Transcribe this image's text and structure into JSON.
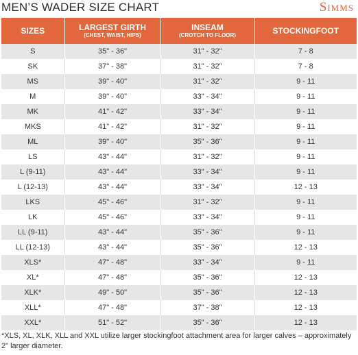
{
  "header": {
    "title": "MEN’S WADER SIZE CHART",
    "logo": "Simms"
  },
  "table": {
    "columns": [
      {
        "label": "SIZES",
        "sub": ""
      },
      {
        "label": "LARGEST GIRTH",
        "sub": "(CHEST, WAIST, HIPS)"
      },
      {
        "label": "INSEAM",
        "sub": "(CROTCH TO FLOOR)"
      },
      {
        "label": "STOCKINGFOOT",
        "sub": ""
      }
    ],
    "rows": [
      {
        "size": "S",
        "girth": "35\" - 36\"",
        "inseam": "31\" - 32\"",
        "foot": "7 - 8"
      },
      {
        "size": "SK",
        "girth": "37\" - 38\"",
        "inseam": "31\" - 32\"",
        "foot": "7 - 8"
      },
      {
        "size": "MS",
        "girth": "39\" - 40\"",
        "inseam": "31\" - 32\"",
        "foot": "9 - 11"
      },
      {
        "size": "M",
        "girth": "39\" - 40\"",
        "inseam": "33\" - 34\"",
        "foot": "9 - 11"
      },
      {
        "size": "MK",
        "girth": "41\" - 42\"",
        "inseam": "33\" - 34\"",
        "foot": "9 - 11"
      },
      {
        "size": "MKS",
        "girth": "41\" - 42\"",
        "inseam": "31\" - 32\"",
        "foot": "9 - 11"
      },
      {
        "size": "ML",
        "girth": "39\" - 40\"",
        "inseam": "35\" - 36\"",
        "foot": "9 - 11"
      },
      {
        "size": "LS",
        "girth": "43\" - 44\"",
        "inseam": "31\" - 32\"",
        "foot": "9 - 11"
      },
      {
        "size": "L (9-11)",
        "girth": "43\" - 44\"",
        "inseam": "33\" - 34\"",
        "foot": "9 - 11"
      },
      {
        "size": "L (12-13)",
        "girth": "43\" - 44\"",
        "inseam": "33\" - 34\"",
        "foot": "12 - 13"
      },
      {
        "size": "LKS",
        "girth": "45\" - 46\"",
        "inseam": "31\" - 32\"",
        "foot": "9 - 11"
      },
      {
        "size": "LK",
        "girth": "45\" - 46\"",
        "inseam": "33\" - 34\"",
        "foot": "9 - 11"
      },
      {
        "size": "LL (9-11)",
        "girth": "43\" - 44\"",
        "inseam": "35\" - 36\"",
        "foot": "9 - 11"
      },
      {
        "size": "LL (12-13)",
        "girth": "43\" - 44\"",
        "inseam": "35\" - 36\"",
        "foot": "12 - 13"
      },
      {
        "size": "XLS*",
        "girth": "47\" - 48\"",
        "inseam": "33\" - 34\"",
        "foot": "9 - 11"
      },
      {
        "size": "XL*",
        "girth": "47\" - 48\"",
        "inseam": "35\" - 36\"",
        "foot": "12 - 13"
      },
      {
        "size": "XLK*",
        "girth": "49\" - 50\"",
        "inseam": "35\" - 36\"",
        "foot": "12 - 13"
      },
      {
        "size": "XLL*",
        "girth": "47\" - 48\"",
        "inseam": "37\" - 38\"",
        "foot": "12 - 13"
      },
      {
        "size": "XXL*",
        "girth": "51\" - 52\"",
        "inseam": "35\" - 36\"",
        "foot": "12 - 13"
      }
    ]
  },
  "footnote": "*XLS, XL, XLK, XLL and XXL utilize larger stockingfoot attachment area for larger calves – approximately 2\" larger diameter.",
  "colors": {
    "accent": "#e2673d",
    "logo": "#e8643b",
    "row_shade": "#e6e6e6"
  }
}
